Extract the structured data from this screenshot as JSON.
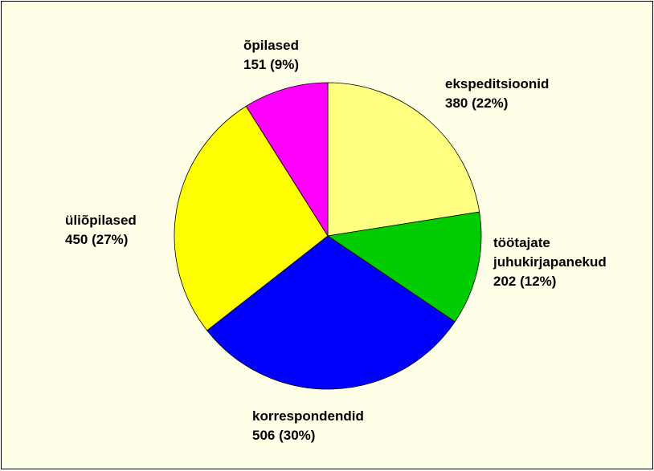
{
  "chart_data": {
    "type": "pie",
    "categories": [
      "ekspeditsioonid",
      "töötajate juhukirjapanekud",
      "korrespondendid",
      "üliõpilased",
      "õpilased"
    ],
    "values": [
      380,
      202,
      506,
      450,
      151
    ],
    "value_labels": [
      "380 (22%)",
      "202 (12%)",
      "506 (30%)",
      "450 (27%)",
      "151 (9%)"
    ],
    "colors": [
      "#ffff80",
      "#00cc00",
      "#0000ff",
      "#ffff00",
      "#ff00ff"
    ]
  }
}
